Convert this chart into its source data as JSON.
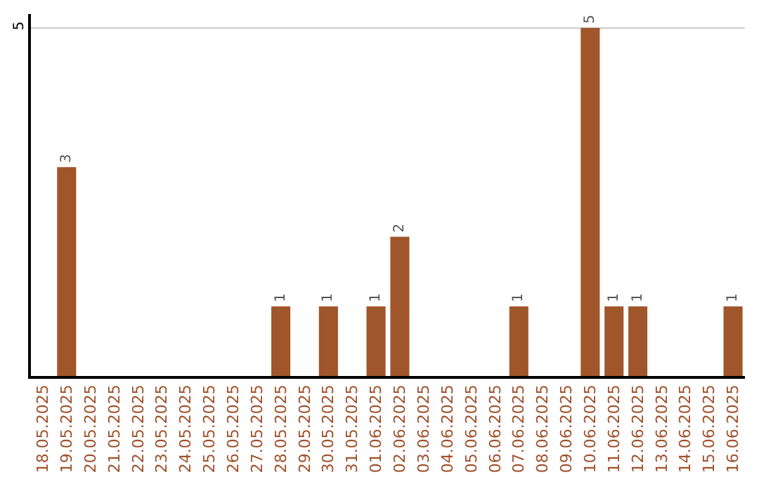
{
  "chart_data": {
    "type": "bar",
    "categories": [
      "18.05.2025",
      "19.05.2025",
      "20.05.2025",
      "21.05.2025",
      "22.05.2025",
      "23.05.2025",
      "24.05.2025",
      "25.05.2025",
      "26.05.2025",
      "27.05.2025",
      "28.05.2025",
      "29.05.2025",
      "30.05.2025",
      "31.05.2025",
      "01.06.2025",
      "02.06.2025",
      "03.06.2025",
      "04.06.2025",
      "05.06.2025",
      "06.06.2025",
      "07.06.2025",
      "08.06.2025",
      "09.06.2025",
      "10.06.2025",
      "11.06.2025",
      "12.06.2025",
      "13.06.2025",
      "14.06.2025",
      "15.06.2025",
      "16.06.2025"
    ],
    "values": [
      0,
      3,
      0,
      0,
      0,
      0,
      0,
      0,
      0,
      0,
      1,
      0,
      1,
      0,
      1,
      2,
      0,
      0,
      0,
      0,
      1,
      0,
      0,
      5,
      1,
      1,
      0,
      0,
      0,
      1
    ],
    "value_labels": [
      null,
      "3",
      null,
      null,
      null,
      null,
      null,
      null,
      null,
      null,
      "1",
      null,
      "1",
      null,
      "1",
      "2",
      null,
      null,
      null,
      null,
      "1",
      null,
      null,
      "5",
      "1",
      "1",
      null,
      null,
      null,
      "1"
    ],
    "color": "#a0562a",
    "ylim": [
      0,
      5.2
    ],
    "yticks": [
      5
    ],
    "grid": "y",
    "legend": false
  }
}
